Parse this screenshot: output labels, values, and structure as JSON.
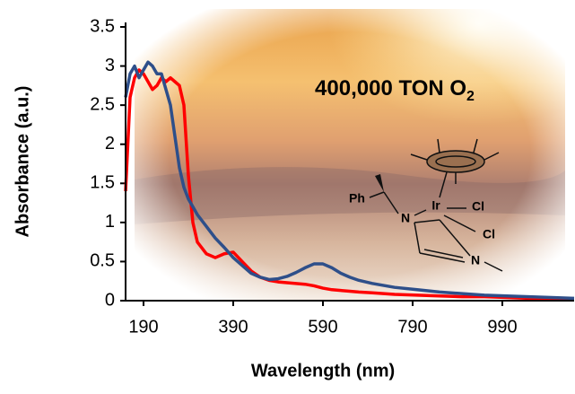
{
  "chart_data": {
    "type": "line",
    "x_label": "Wavelength (nm)",
    "y_label": "Absorbance (a.u.)",
    "x": [
      150,
      160,
      170,
      180,
      190,
      200,
      210,
      220,
      230,
      240,
      250,
      260,
      270,
      280,
      290,
      300,
      310,
      330,
      350,
      370,
      390,
      410,
      430,
      450,
      470,
      490,
      510,
      530,
      550,
      570,
      590,
      610,
      630,
      650,
      670,
      700,
      750,
      800,
      850,
      900,
      950,
      1000,
      1050,
      1100,
      1150
    ],
    "series": [
      {
        "color": "#ff0000",
        "values": [
          1.4,
          2.6,
          2.85,
          2.95,
          2.9,
          2.8,
          2.7,
          2.75,
          2.85,
          2.8,
          2.85,
          2.8,
          2.75,
          2.5,
          1.6,
          1.0,
          0.75,
          0.6,
          0.55,
          0.6,
          0.62,
          0.5,
          0.38,
          0.3,
          0.26,
          0.24,
          0.23,
          0.22,
          0.21,
          0.19,
          0.16,
          0.14,
          0.13,
          0.12,
          0.11,
          0.1,
          0.08,
          0.07,
          0.06,
          0.05,
          0.05,
          0.04,
          0.03,
          0.03,
          0.02
        ]
      },
      {
        "color": "#2e4f8a",
        "values": [
          2.6,
          2.9,
          3.0,
          2.85,
          2.95,
          3.05,
          3.0,
          2.9,
          2.9,
          2.7,
          2.5,
          2.1,
          1.7,
          1.45,
          1.3,
          1.2,
          1.1,
          0.95,
          0.8,
          0.68,
          0.55,
          0.45,
          0.35,
          0.3,
          0.27,
          0.28,
          0.31,
          0.36,
          0.42,
          0.47,
          0.47,
          0.42,
          0.35,
          0.3,
          0.26,
          0.22,
          0.17,
          0.14,
          0.11,
          0.09,
          0.07,
          0.06,
          0.05,
          0.04,
          0.03
        ]
      }
    ],
    "xlim": [
      150,
      1150
    ],
    "xticks": [
      190,
      390,
      590,
      790,
      990
    ],
    "ylim": [
      0,
      3.5
    ],
    "yticks": [
      0,
      0.5,
      1,
      1.5,
      2,
      2.5,
      3,
      3.5
    ],
    "annotation": {
      "text": "400,000 TON O",
      "subscript": "2"
    },
    "structure_labels": [
      "Ph",
      "N",
      "Ir",
      "Cl",
      "Cl",
      "N"
    ]
  }
}
